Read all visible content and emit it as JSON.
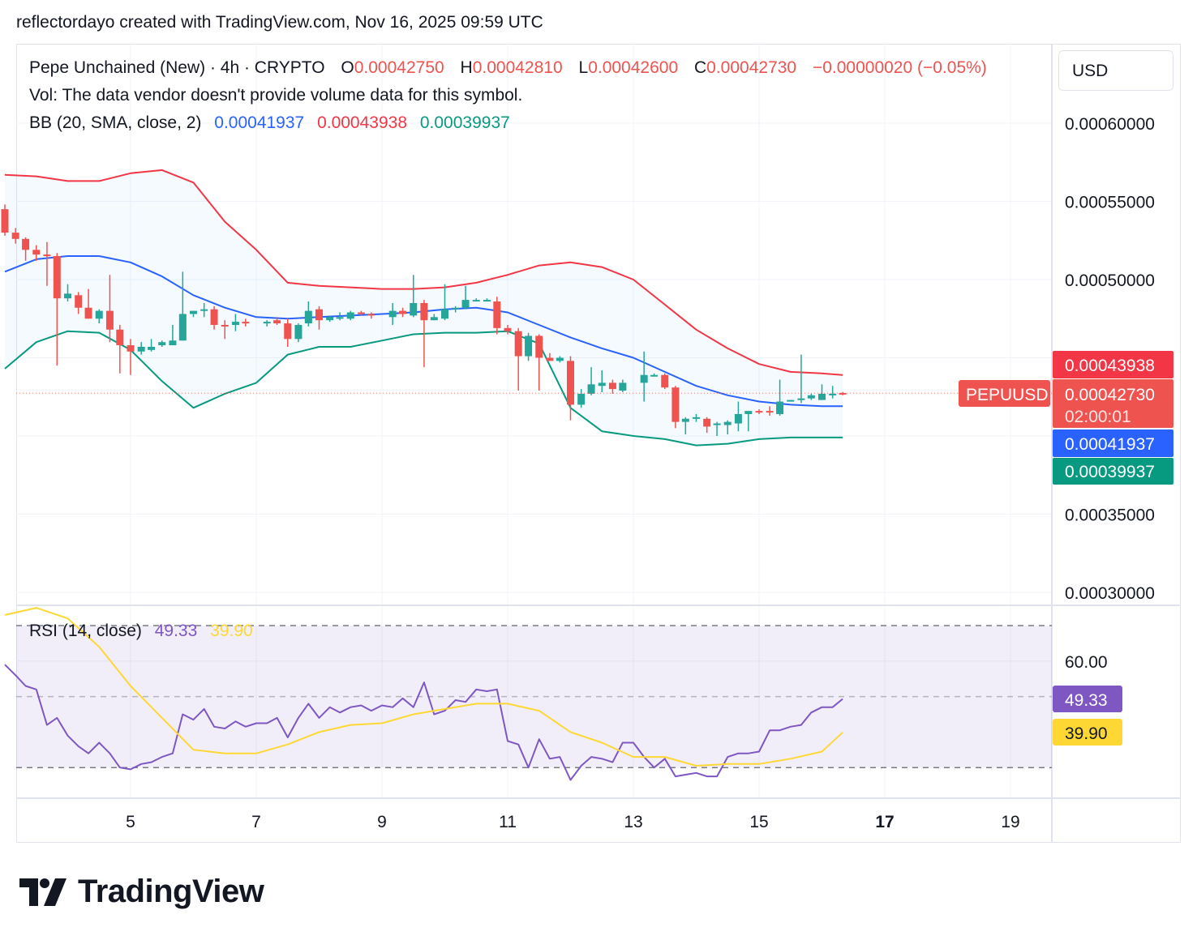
{
  "header": {
    "attribution": "reflectordayo created with TradingView.com, Nov 16, 2025 09:59 UTC"
  },
  "legend": {
    "symbol": "Pepe Unchained (New) · 4h · CRYPTO",
    "o_label": "O",
    "o_value": "0.00042750",
    "h_label": "H",
    "h_value": "0.00042810",
    "l_label": "L",
    "l_value": "0.00042600",
    "c_label": "C",
    "c_value": "0.00042730",
    "change": "−0.00000020 (−0.05%)",
    "volume": "Vol: The data vendor doesn't provide volume data for this symbol.",
    "bb_label": "BB (20, SMA, close, 2)",
    "bb_basis": "0.00041937",
    "bb_upper": "0.00043938",
    "bb_lower": "0.00039937",
    "rsi_label": "RSI (14, close)",
    "rsi_value": "49.33",
    "rsi_ma": "39.90"
  },
  "currency": "USD",
  "price_scale": {
    "ticks": [
      "0.00060000",
      "0.00055000",
      "0.00050000",
      "0.00035000",
      "0.00030000"
    ],
    "labels": {
      "upper": "0.00043938",
      "last": "0.00042730",
      "countdown": "02:00:01",
      "basis": "0.00041937",
      "lower": "0.00039937",
      "symbol_tag": "PEPUUSD"
    }
  },
  "rsi_scale": {
    "ticks": [
      "60.00"
    ],
    "rsi_label": "49.33",
    "ma_label": "39.90"
  },
  "time_axis": {
    "labels": [
      "5",
      "7",
      "9",
      "11",
      "13",
      "15",
      "17",
      "19"
    ]
  },
  "colors": {
    "up": "#26a69a",
    "down": "#ef5350",
    "bb_upper": "#f23645",
    "bb_basis": "#2962ff",
    "bb_lower": "#089981",
    "bb_fill": "#2196f3",
    "rsi": "#7e57c2",
    "rsi_ma": "#fdd835",
    "rsi_band": "#7e57c2"
  },
  "brand": "TradingView",
  "chart_data": [
    {
      "type": "candlestick",
      "title": "Pepe Unchained (New) · 4h · CRYPTO",
      "x_unit": "day of Nov 2025",
      "ylim": [
        0.0003,
        0.0006
      ],
      "candles": [
        {
          "t": 3.0,
          "o": 0.000545,
          "h": 0.000548,
          "l": 0.000528,
          "c": 0.00053
        },
        {
          "t": 3.17,
          "o": 0.00053,
          "h": 0.000533,
          "l": 0.000523,
          "c": 0.000526
        },
        {
          "t": 3.33,
          "o": 0.000526,
          "h": 0.000527,
          "l": 0.000512,
          "c": 0.000519
        },
        {
          "t": 3.5,
          "o": 0.000519,
          "h": 0.000522,
          "l": 0.000512,
          "c": 0.000516
        },
        {
          "t": 3.67,
          "o": 0.000516,
          "h": 0.000524,
          "l": 0.000496,
          "c": 0.000515
        },
        {
          "t": 3.83,
          "o": 0.000515,
          "h": 0.000517,
          "l": 0.000445,
          "c": 0.000488
        },
        {
          "t": 4.0,
          "o": 0.000488,
          "h": 0.000497,
          "l": 0.000486,
          "c": 0.000491
        },
        {
          "t": 4.17,
          "o": 0.00049,
          "h": 0.000492,
          "l": 0.000478,
          "c": 0.000482
        },
        {
          "t": 4.33,
          "o": 0.000482,
          "h": 0.000494,
          "l": 0.000475,
          "c": 0.000475
        },
        {
          "t": 4.5,
          "o": 0.000475,
          "h": 0.000481,
          "l": 0.000472,
          "c": 0.00048
        },
        {
          "t": 4.67,
          "o": 0.00048,
          "h": 0.000503,
          "l": 0.00046,
          "c": 0.000468
        },
        {
          "t": 4.83,
          "o": 0.000468,
          "h": 0.000471,
          "l": 0.00044,
          "c": 0.000458
        },
        {
          "t": 5.0,
          "o": 0.000458,
          "h": 0.000462,
          "l": 0.000439,
          "c": 0.000454
        },
        {
          "t": 5.17,
          "o": 0.000454,
          "h": 0.00046,
          "l": 0.000452,
          "c": 0.000457
        },
        {
          "t": 5.33,
          "o": 0.000455,
          "h": 0.000462,
          "l": 0.000454,
          "c": 0.000457
        },
        {
          "t": 5.5,
          "o": 0.000458,
          "h": 0.000461,
          "l": 0.000457,
          "c": 0.00046
        },
        {
          "t": 5.67,
          "o": 0.000458,
          "h": 0.000471,
          "l": 0.000459,
          "c": 0.000461
        },
        {
          "t": 5.83,
          "o": 0.000461,
          "h": 0.000505,
          "l": 0.000461,
          "c": 0.000478
        },
        {
          "t": 6.0,
          "o": 0.000478,
          "h": 0.00048,
          "l": 0.000476,
          "c": 0.00048
        },
        {
          "t": 6.17,
          "o": 0.00048,
          "h": 0.000485,
          "l": 0.000476,
          "c": 0.000481
        },
        {
          "t": 6.33,
          "o": 0.000481,
          "h": 0.000483,
          "l": 0.000468,
          "c": 0.000471
        },
        {
          "t": 6.5,
          "o": 0.000471,
          "h": 0.000474,
          "l": 0.000462,
          "c": 0.00047
        },
        {
          "t": 6.67,
          "o": 0.000471,
          "h": 0.000478,
          "l": 0.000467,
          "c": 0.000473
        },
        {
          "t": 6.83,
          "o": 0.000473,
          "h": 0.000475,
          "l": 0.00047,
          "c": 0.000472
        },
        {
          "t": 7.17,
          "o": 0.000472,
          "h": 0.000474,
          "l": 0.00047,
          "c": 0.000473
        },
        {
          "t": 7.33,
          "o": 0.000474,
          "h": 0.000476,
          "l": 0.000471,
          "c": 0.000472
        },
        {
          "t": 7.5,
          "o": 0.000472,
          "h": 0.000475,
          "l": 0.000457,
          "c": 0.000462
        },
        {
          "t": 7.67,
          "o": 0.000462,
          "h": 0.000472,
          "l": 0.00046,
          "c": 0.000471
        },
        {
          "t": 7.83,
          "o": 0.000472,
          "h": 0.000486,
          "l": 0.00047,
          "c": 0.00048
        },
        {
          "t": 8.0,
          "o": 0.000481,
          "h": 0.000483,
          "l": 0.000468,
          "c": 0.000474
        },
        {
          "t": 8.17,
          "o": 0.000474,
          "h": 0.000477,
          "l": 0.000473,
          "c": 0.000476
        },
        {
          "t": 8.33,
          "o": 0.000476,
          "h": 0.000479,
          "l": 0.000474,
          "c": 0.000476
        },
        {
          "t": 8.5,
          "o": 0.000475,
          "h": 0.00048,
          "l": 0.000474,
          "c": 0.000479
        },
        {
          "t": 8.67,
          "o": 0.000479,
          "h": 0.00048,
          "l": 0.000477,
          "c": 0.000478
        },
        {
          "t": 8.83,
          "o": 0.000478,
          "h": 0.000479,
          "l": 0.000475,
          "c": 0.000477
        },
        {
          "t": 9.17,
          "o": 0.000476,
          "h": 0.000485,
          "l": 0.000471,
          "c": 0.00048
        },
        {
          "t": 9.33,
          "o": 0.00048,
          "h": 0.000482,
          "l": 0.000476,
          "c": 0.000478
        },
        {
          "t": 9.5,
          "o": 0.000477,
          "h": 0.000503,
          "l": 0.000476,
          "c": 0.000485
        },
        {
          "t": 9.67,
          "o": 0.000485,
          "h": 0.000487,
          "l": 0.000444,
          "c": 0.000474
        },
        {
          "t": 9.83,
          "o": 0.000474,
          "h": 0.000478,
          "l": 0.000474,
          "c": 0.000476
        },
        {
          "t": 10.0,
          "o": 0.000475,
          "h": 0.000497,
          "l": 0.000474,
          "c": 0.000481
        },
        {
          "t": 10.17,
          "o": 0.000481,
          "h": 0.000483,
          "l": 0.000479,
          "c": 0.000482
        },
        {
          "t": 10.33,
          "o": 0.000482,
          "h": 0.000496,
          "l": 0.000481,
          "c": 0.000487
        },
        {
          "t": 10.5,
          "o": 0.000487,
          "h": 0.000488,
          "l": 0.000486,
          "c": 0.000487
        },
        {
          "t": 10.67,
          "o": 0.000487,
          "h": 0.000488,
          "l": 0.000486,
          "c": 0.000487
        },
        {
          "t": 10.83,
          "o": 0.000486,
          "h": 0.000489,
          "l": 0.000465,
          "c": 0.000469
        },
        {
          "t": 11.0,
          "o": 0.000469,
          "h": 0.000471,
          "l": 0.000465,
          "c": 0.000467
        },
        {
          "t": 11.17,
          "o": 0.000467,
          "h": 0.000469,
          "l": 0.000429,
          "c": 0.000451
        },
        {
          "t": 11.33,
          "o": 0.000451,
          "h": 0.000466,
          "l": 0.000448,
          "c": 0.000464
        },
        {
          "t": 11.5,
          "o": 0.000464,
          "h": 0.000465,
          "l": 0.000429,
          "c": 0.00045
        },
        {
          "t": 11.67,
          "o": 0.00045,
          "h": 0.000453,
          "l": 0.000448,
          "c": 0.000448
        },
        {
          "t": 11.83,
          "o": 0.000448,
          "h": 0.000451,
          "l": 0.000447,
          "c": 0.00045
        },
        {
          "t": 12.0,
          "o": 0.000448,
          "h": 0.000451,
          "l": 0.00041,
          "c": 0.00042
        },
        {
          "t": 12.17,
          "o": 0.00042,
          "h": 0.00043,
          "l": 0.000418,
          "c": 0.000427
        },
        {
          "t": 12.33,
          "o": 0.000427,
          "h": 0.000444,
          "l": 0.000426,
          "c": 0.000433
        },
        {
          "t": 12.5,
          "o": 0.000432,
          "h": 0.000442,
          "l": 0.000428,
          "c": 0.000434
        },
        {
          "t": 12.67,
          "o": 0.000434,
          "h": 0.000436,
          "l": 0.000427,
          "c": 0.00043
        },
        {
          "t": 12.83,
          "o": 0.000429,
          "h": 0.000436,
          "l": 0.000428,
          "c": 0.000434
        },
        {
          "t": 13.17,
          "o": 0.000434,
          "h": 0.000454,
          "l": 0.000422,
          "c": 0.000439
        },
        {
          "t": 13.33,
          "o": 0.000439,
          "h": 0.00044,
          "l": 0.000438,
          "c": 0.000439
        },
        {
          "t": 13.5,
          "o": 0.000439,
          "h": 0.00044,
          "l": 0.00043,
          "c": 0.000431
        },
        {
          "t": 13.67,
          "o": 0.000431,
          "h": 0.000432,
          "l": 0.000405,
          "c": 0.000409
        },
        {
          "t": 13.83,
          "o": 0.000409,
          "h": 0.000412,
          "l": 0.000401,
          "c": 0.000411
        },
        {
          "t": 14.0,
          "o": 0.000411,
          "h": 0.000414,
          "l": 0.000409,
          "c": 0.000412
        },
        {
          "t": 14.17,
          "o": 0.000411,
          "h": 0.000412,
          "l": 0.000402,
          "c": 0.000406
        },
        {
          "t": 14.33,
          "o": 0.000407,
          "h": 0.000409,
          "l": 0.0004,
          "c": 0.000408
        },
        {
          "t": 14.5,
          "o": 0.000407,
          "h": 0.00041,
          "l": 0.000401,
          "c": 0.000409
        },
        {
          "t": 14.67,
          "o": 0.000408,
          "h": 0.000422,
          "l": 0.000403,
          "c": 0.000414
        },
        {
          "t": 14.83,
          "o": 0.000414,
          "h": 0.000415,
          "l": 0.000403,
          "c": 0.000416
        },
        {
          "t": 15.0,
          "o": 0.000416,
          "h": 0.000417,
          "l": 0.000414,
          "c": 0.000415
        },
        {
          "t": 15.17,
          "o": 0.000416,
          "h": 0.000419,
          "l": 0.000413,
          "c": 0.000415
        },
        {
          "t": 15.33,
          "o": 0.000414,
          "h": 0.000436,
          "l": 0.000413,
          "c": 0.000422
        },
        {
          "t": 15.5,
          "o": 0.000422,
          "h": 0.000423,
          "l": 0.000422,
          "c": 0.000423
        },
        {
          "t": 15.67,
          "o": 0.000423,
          "h": 0.000452,
          "l": 0.000421,
          "c": 0.000424
        },
        {
          "t": 15.83,
          "o": 0.000424,
          "h": 0.000427,
          "l": 0.000423,
          "c": 0.000426
        },
        {
          "t": 16.0,
          "o": 0.000423,
          "h": 0.000433,
          "l": 0.000423,
          "c": 0.000427
        },
        {
          "t": 16.17,
          "o": 0.000427,
          "h": 0.000432,
          "l": 0.000424,
          "c": 0.000427
        },
        {
          "t": 16.33,
          "o": 0.0004275,
          "h": 0.0004281,
          "l": 0.000426,
          "c": 0.0004273
        }
      ],
      "bollinger": {
        "t": [
          3.0,
          3.5,
          4.0,
          4.5,
          5.0,
          5.5,
          6.0,
          6.5,
          7.0,
          7.5,
          8.0,
          8.5,
          9.0,
          9.5,
          10.0,
          10.5,
          11.0,
          11.5,
          12.0,
          12.5,
          13.0,
          13.5,
          14.0,
          14.5,
          15.0,
          15.5,
          16.0,
          16.33
        ],
        "upper": [
          0.000567,
          0.000566,
          0.000563,
          0.000563,
          0.000568,
          0.00057,
          0.000562,
          0.000537,
          0.000519,
          0.000498,
          0.000496,
          0.000495,
          0.000494,
          0.000494,
          0.000495,
          0.000498,
          0.000503,
          0.000509,
          0.000511,
          0.000508,
          0.0005,
          0.000484,
          0.000468,
          0.000456,
          0.000446,
          0.000441,
          0.00044,
          0.000439
        ],
        "basis": [
          0.000505,
          0.000513,
          0.000515,
          0.000515,
          0.000511,
          0.000502,
          0.00049,
          0.000482,
          0.000476,
          0.000475,
          0.000476,
          0.000477,
          0.000478,
          0.000479,
          0.000481,
          0.000482,
          0.000479,
          0.000471,
          0.000463,
          0.000456,
          0.00045,
          0.000441,
          0.000432,
          0.000426,
          0.000422,
          0.00042,
          0.000419,
          0.000419
        ],
        "lower": [
          0.000443,
          0.00046,
          0.000467,
          0.000466,
          0.000455,
          0.000435,
          0.000418,
          0.000427,
          0.000434,
          0.000452,
          0.000457,
          0.000457,
          0.000461,
          0.000465,
          0.000466,
          0.000466,
          0.000467,
          0.000459,
          0.000418,
          0.000403,
          0.0004,
          0.000398,
          0.000394,
          0.000395,
          0.000398,
          0.000399,
          0.000399,
          0.000399
        ]
      }
    },
    {
      "type": "line",
      "title": "RSI (14, close)",
      "ylim": [
        25,
        75
      ],
      "bands": [
        30,
        50,
        70
      ],
      "series": [
        {
          "name": "RSI",
          "x": [
            3.0,
            3.17,
            3.33,
            3.5,
            3.67,
            3.83,
            4.0,
            4.17,
            4.33,
            4.5,
            4.67,
            4.83,
            5.0,
            5.17,
            5.33,
            5.5,
            5.67,
            5.83,
            6.0,
            6.17,
            6.33,
            6.5,
            6.67,
            6.83,
            7.0,
            7.17,
            7.33,
            7.5,
            7.67,
            7.83,
            8.0,
            8.17,
            8.33,
            8.5,
            8.67,
            8.83,
            9.0,
            9.17,
            9.33,
            9.5,
            9.67,
            9.83,
            10.0,
            10.17,
            10.33,
            10.5,
            10.67,
            10.83,
            11.0,
            11.17,
            11.33,
            11.5,
            11.67,
            11.83,
            12.0,
            12.17,
            12.33,
            12.5,
            12.67,
            12.83,
            13.0,
            13.17,
            13.33,
            13.5,
            13.67,
            13.83,
            14.0,
            14.17,
            14.33,
            14.5,
            14.67,
            14.83,
            15.0,
            15.17,
            15.33,
            15.5,
            15.67,
            15.83,
            16.0,
            16.17,
            16.33
          ],
          "values": [
            59,
            56,
            53,
            52,
            42,
            44,
            39,
            36,
            34,
            37,
            34,
            30,
            29.5,
            31,
            31.5,
            33,
            34,
            45,
            43.5,
            46.5,
            41.5,
            41,
            43,
            41.5,
            42.5,
            42.5,
            44,
            38.5,
            44,
            48,
            44,
            47,
            45.5,
            47,
            47.5,
            46,
            47.5,
            47,
            49.5,
            47,
            54,
            45,
            46,
            49,
            48.5,
            52,
            51.5,
            52,
            37.5,
            36.5,
            30,
            38,
            32.5,
            33,
            26.5,
            30.5,
            33,
            32.5,
            31.5,
            37,
            37,
            33,
            30,
            32.5,
            27.5,
            28,
            28.5,
            27.5,
            27.5,
            33,
            34,
            34,
            34.5,
            40.5,
            40.5,
            41.5,
            42,
            45.5,
            47,
            47,
            49.33
          ]
        },
        {
          "name": "RSI-based MA",
          "x": [
            3.0,
            3.5,
            4.0,
            4.5,
            5.0,
            5.5,
            6.0,
            6.5,
            7.0,
            7.5,
            8.0,
            8.5,
            9.0,
            9.5,
            10.0,
            10.5,
            11.0,
            11.5,
            12.0,
            12.5,
            13.0,
            13.5,
            14.0,
            14.5,
            15.0,
            15.5,
            16.0,
            16.33
          ],
          "values": [
            73,
            75,
            72,
            64,
            53,
            44,
            35,
            34,
            34,
            36.5,
            40,
            42,
            42.5,
            45,
            46.5,
            48,
            48,
            46,
            40,
            37,
            33,
            33,
            30.5,
            31,
            31,
            32.5,
            34.5,
            39.9
          ]
        }
      ]
    }
  ]
}
